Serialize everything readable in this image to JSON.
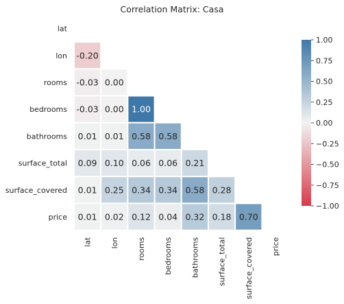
{
  "chart_data": {
    "type": "heatmap",
    "title": "Correlation Matrix: Casa",
    "variables": [
      "lat",
      "lon",
      "rooms",
      "bedrooms",
      "bathrooms",
      "surface_total",
      "surface_covered",
      "price"
    ],
    "mask": "upper-triangle-including-diagonal",
    "matrix": [
      [
        null,
        null,
        null,
        null,
        null,
        null,
        null,
        null
      ],
      [
        -0.2,
        null,
        null,
        null,
        null,
        null,
        null,
        null
      ],
      [
        -0.03,
        0.0,
        null,
        null,
        null,
        null,
        null,
        null
      ],
      [
        -0.03,
        0.0,
        1.0,
        null,
        null,
        null,
        null,
        null
      ],
      [
        0.01,
        0.01,
        0.58,
        0.58,
        null,
        null,
        null,
        null
      ],
      [
        0.09,
        0.1,
        0.06,
        0.06,
        0.21,
        null,
        null,
        null
      ],
      [
        0.01,
        0.25,
        0.34,
        0.34,
        0.58,
        0.28,
        null,
        null
      ],
      [
        0.01,
        0.02,
        0.12,
        0.04,
        0.32,
        0.18,
        0.7,
        null
      ]
    ],
    "colorbar": {
      "range": [
        -1.0,
        1.0
      ],
      "ticks": [
        "1.00",
        "0.75",
        "0.50",
        "0.25",
        "0.00",
        "−0.25",
        "−0.50",
        "−0.75",
        "−1.00"
      ],
      "colors": {
        "negative": "#d83a4a",
        "center": "#f2f2f2",
        "positive": "#3e78a8"
      }
    }
  }
}
